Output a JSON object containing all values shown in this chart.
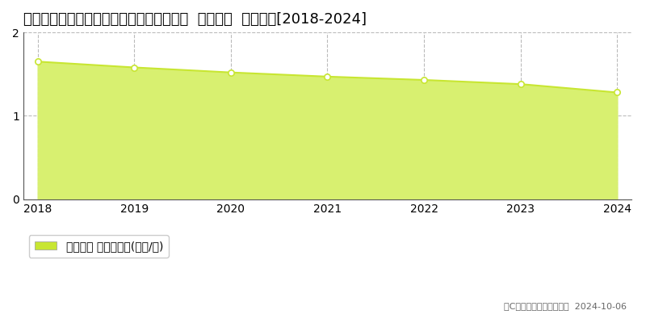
{
  "title": "奈良県吉野郡上北山村大字西原４８５番３  基準地価  地価推移[2018-2024]",
  "years": [
    2018,
    2019,
    2020,
    2021,
    2022,
    2023,
    2024
  ],
  "values": [
    1.65,
    1.58,
    1.52,
    1.47,
    1.43,
    1.38,
    1.28
  ],
  "ylim": [
    0,
    2
  ],
  "yticks": [
    0,
    1,
    2
  ],
  "line_color": "#c8e632",
  "fill_color": "#d8f070",
  "marker_facecolor": "#ffffff",
  "marker_edge_color": "#c8e632",
  "background_color": "#ffffff",
  "grid_color": "#bbbbbb",
  "legend_label": "基準地価 平均坪単価(万円/坪)",
  "legend_marker_color": "#c8e632",
  "copyright_text": "（C）土地価格ドットコム  2024-10-06",
  "title_fontsize": 13,
  "axis_fontsize": 10,
  "legend_fontsize": 10
}
